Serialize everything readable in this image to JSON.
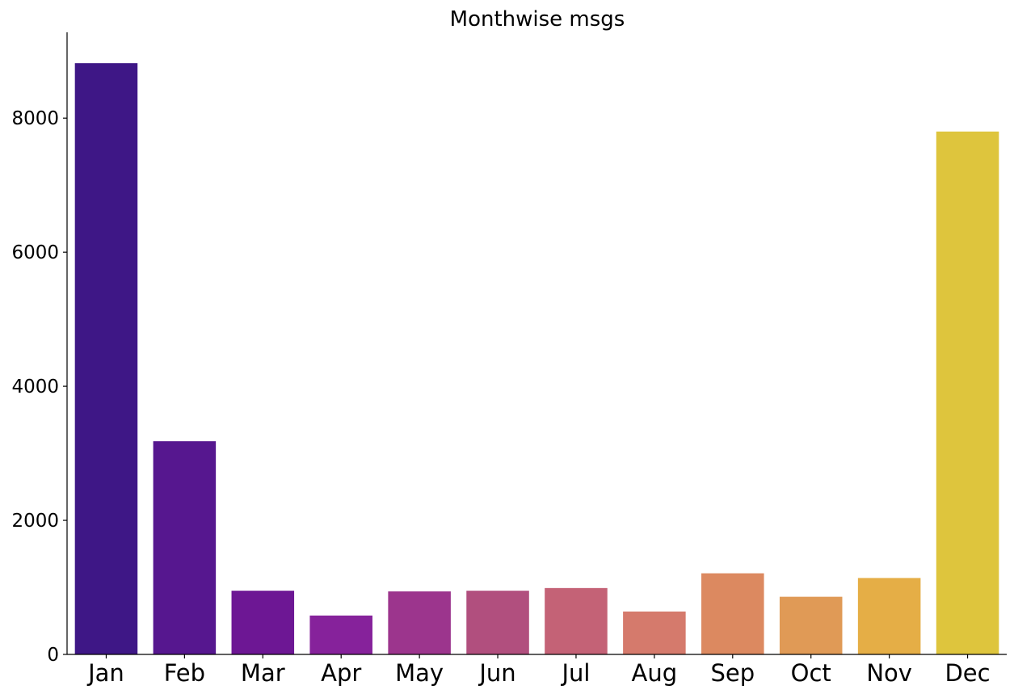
{
  "chart_data": {
    "type": "bar",
    "title": "Monthwise msgs",
    "xlabel": "",
    "ylabel": "",
    "categories": [
      "Jan",
      "Feb",
      "Mar",
      "Apr",
      "May",
      "Jun",
      "Jul",
      "Aug",
      "Sep",
      "Oct",
      "Nov",
      "Dec"
    ],
    "values": [
      8820,
      3180,
      950,
      580,
      940,
      950,
      990,
      640,
      1210,
      860,
      1140,
      7800
    ],
    "colors": [
      "#3e1786",
      "#56178f",
      "#6d1794",
      "#86229b",
      "#9c358d",
      "#b14f7e",
      "#c46276",
      "#d57a6c",
      "#dc8960",
      "#e09a56",
      "#e5ae46",
      "#dec53d"
    ],
    "ylim": [
      0,
      9280
    ],
    "yticks": [
      0,
      2000,
      4000,
      6000,
      8000
    ],
    "grid": false
  }
}
